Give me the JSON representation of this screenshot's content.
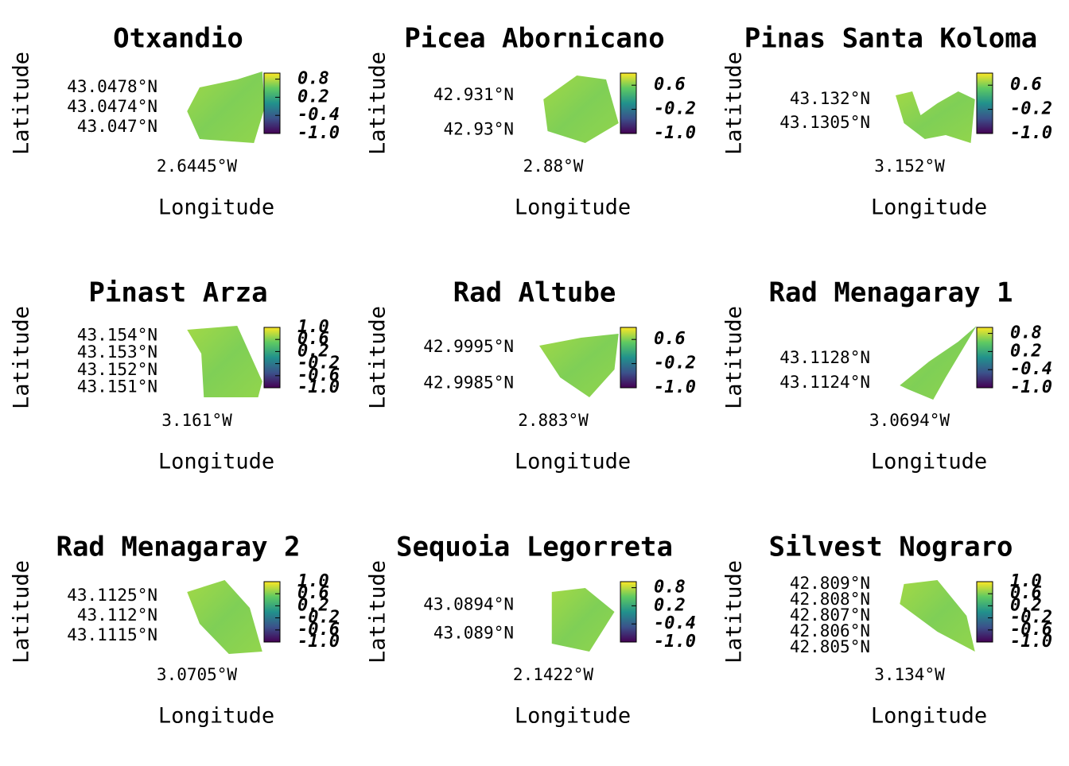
{
  "chart_data": [
    {
      "type": "raster-map",
      "title": "Otxandio",
      "xlabel": "Longitude",
      "ylabel": "Latitude",
      "xlim": [
        -2.6465,
        -2.6425
      ],
      "xticks": [
        {
          "value": -2.6445,
          "label": "2.6445°W"
        }
      ],
      "ylim": [
        43.0466,
        43.0482
      ],
      "yticks": [
        {
          "value": 43.0478,
          "label": "43.0478°N"
        },
        {
          "value": 43.0474,
          "label": "43.0474°N"
        },
        {
          "value": 43.047,
          "label": "43.047°N"
        }
      ],
      "clim": [
        -1,
        1
      ],
      "cticks": [
        0.8,
        0.2,
        -0.4,
        {
          "value": -1,
          "label": "-1.0"
        }
      ]
    },
    {
      "type": "raster-map",
      "title": "Picea Abornicano",
      "xlabel": "Longitude",
      "ylabel": "Latitude",
      "xlim": [
        -2.882,
        -2.878
      ],
      "xticks": [
        {
          "value": -2.88,
          "label": "2.88°W"
        }
      ],
      "ylim": [
        42.9295,
        42.9318
      ],
      "yticks": [
        {
          "value": 42.931,
          "label": "42.931°N"
        },
        {
          "value": 42.93,
          "label": "42.93°N"
        }
      ],
      "clim": [
        -1,
        1
      ],
      "cticks": [
        0.6,
        -0.2,
        {
          "value": -1,
          "label": "-1.0"
        }
      ]
    },
    {
      "type": "raster-map",
      "title": "Pinas Santa Koloma",
      "xlabel": "Longitude",
      "ylabel": "Latitude",
      "xlim": [
        -3.154,
        -3.15
      ],
      "xticks": [
        {
          "value": -3.152,
          "label": "3.152°W"
        }
      ],
      "ylim": [
        43.129,
        43.134
      ],
      "yticks": [
        {
          "value": 43.132,
          "label": "43.132°N"
        },
        {
          "value": 43.1305,
          "label": "43.1305°N"
        }
      ],
      "clim": [
        -1,
        1
      ],
      "cticks": [
        0.6,
        -0.2,
        {
          "value": -1,
          "label": "-1.0"
        }
      ]
    },
    {
      "type": "raster-map",
      "title": "Pinast Arza",
      "xlabel": "Longitude",
      "ylabel": "Latitude",
      "xlim": [
        -3.163,
        -3.159
      ],
      "xticks": [
        {
          "value": -3.161,
          "label": "3.161°W"
        }
      ],
      "ylim": [
        43.1502,
        43.1548
      ],
      "yticks": [
        {
          "value": 43.154,
          "label": "43.154°N"
        },
        {
          "value": 43.153,
          "label": "43.153°N"
        },
        {
          "value": 43.152,
          "label": "43.152°N"
        },
        {
          "value": 43.151,
          "label": "43.151°N"
        }
      ],
      "clim": [
        -1,
        1
      ],
      "cticks": [
        {
          "value": 1,
          "label": "1.0"
        },
        0.6,
        0.2,
        -0.2,
        -0.6,
        {
          "value": -1,
          "label": "-1.0"
        }
      ]
    },
    {
      "type": "raster-map",
      "title": "Rad Altube",
      "xlabel": "Longitude",
      "ylabel": "Latitude",
      "xlim": [
        -2.885,
        -2.881
      ],
      "xticks": [
        {
          "value": -2.883,
          "label": "2.883°W"
        }
      ],
      "ylim": [
        42.998,
        43.0002
      ],
      "yticks": [
        {
          "value": 42.9995,
          "label": "42.9995°N"
        },
        {
          "value": 42.9985,
          "label": "42.9985°N"
        }
      ],
      "clim": [
        -1,
        1
      ],
      "cticks": [
        0.6,
        -0.2,
        {
          "value": -1,
          "label": "-1.0"
        }
      ]
    },
    {
      "type": "raster-map",
      "title": "Rad Menagaray 1",
      "xlabel": "Longitude",
      "ylabel": "Latitude",
      "xlim": [
        -3.0714,
        -3.0674
      ],
      "xticks": [
        {
          "value": -3.0694,
          "label": "3.0694°W"
        }
      ],
      "ylim": [
        43.1121,
        43.1134
      ],
      "yticks": [
        {
          "value": 43.1128,
          "label": "43.1128°N"
        },
        {
          "value": 43.1124,
          "label": "43.1124°N"
        }
      ],
      "clim": [
        -1,
        1
      ],
      "cticks": [
        0.8,
        0.2,
        -0.4,
        {
          "value": -1,
          "label": "-1.0"
        }
      ]
    },
    {
      "type": "raster-map",
      "title": "Rad Menagaray 2",
      "xlabel": "Longitude",
      "ylabel": "Latitude",
      "xlim": [
        -3.0725,
        -3.0685
      ],
      "xticks": [
        {
          "value": -3.0705,
          "label": "3.0705°W"
        }
      ],
      "ylim": [
        43.111,
        43.113
      ],
      "yticks": [
        {
          "value": 43.1125,
          "label": "43.1125°N"
        },
        {
          "value": 43.112,
          "label": "43.112°N"
        },
        {
          "value": 43.1115,
          "label": "43.1115°N"
        }
      ],
      "clim": [
        -1,
        1
      ],
      "cticks": [
        {
          "value": 1,
          "label": "1.0"
        },
        0.6,
        0.2,
        -0.2,
        -0.6,
        {
          "value": -1,
          "label": "-1.0"
        }
      ]
    },
    {
      "type": "raster-map",
      "title": "Sequoia Legorreta",
      "xlabel": "Longitude",
      "ylabel": "Latitude",
      "xlim": [
        -2.1442,
        -2.1402
      ],
      "xticks": [
        {
          "value": -2.1422,
          "label": "2.1422°W"
        }
      ],
      "ylim": [
        43.0887,
        43.0898
      ],
      "yticks": [
        {
          "value": 43.0894,
          "label": "43.0894°N"
        },
        {
          "value": 43.089,
          "label": "43.089°N"
        }
      ],
      "clim": [
        -1,
        1
      ],
      "cticks": [
        0.8,
        0.2,
        -0.4,
        {
          "value": -1,
          "label": "-1.0"
        }
      ]
    },
    {
      "type": "raster-map",
      "title": "Silvest Nograro",
      "xlabel": "Longitude",
      "ylabel": "Latitude",
      "xlim": [
        -3.136,
        -3.132
      ],
      "xticks": [
        {
          "value": -3.134,
          "label": "3.134°W"
        }
      ],
      "ylim": [
        42.8045,
        42.8095
      ],
      "yticks": [
        {
          "value": 42.809,
          "label": "42.809°N"
        },
        {
          "value": 42.808,
          "label": "42.808°N"
        },
        {
          "value": 42.807,
          "label": "42.807°N"
        },
        {
          "value": 42.806,
          "label": "42.806°N"
        },
        {
          "value": 42.805,
          "label": "42.805°N"
        }
      ],
      "clim": [
        -1,
        1
      ],
      "cticks": [
        {
          "value": 1,
          "label": "1.0"
        },
        0.6,
        0.2,
        -0.2,
        -0.6,
        {
          "value": -1,
          "label": "-1.0"
        }
      ]
    }
  ]
}
